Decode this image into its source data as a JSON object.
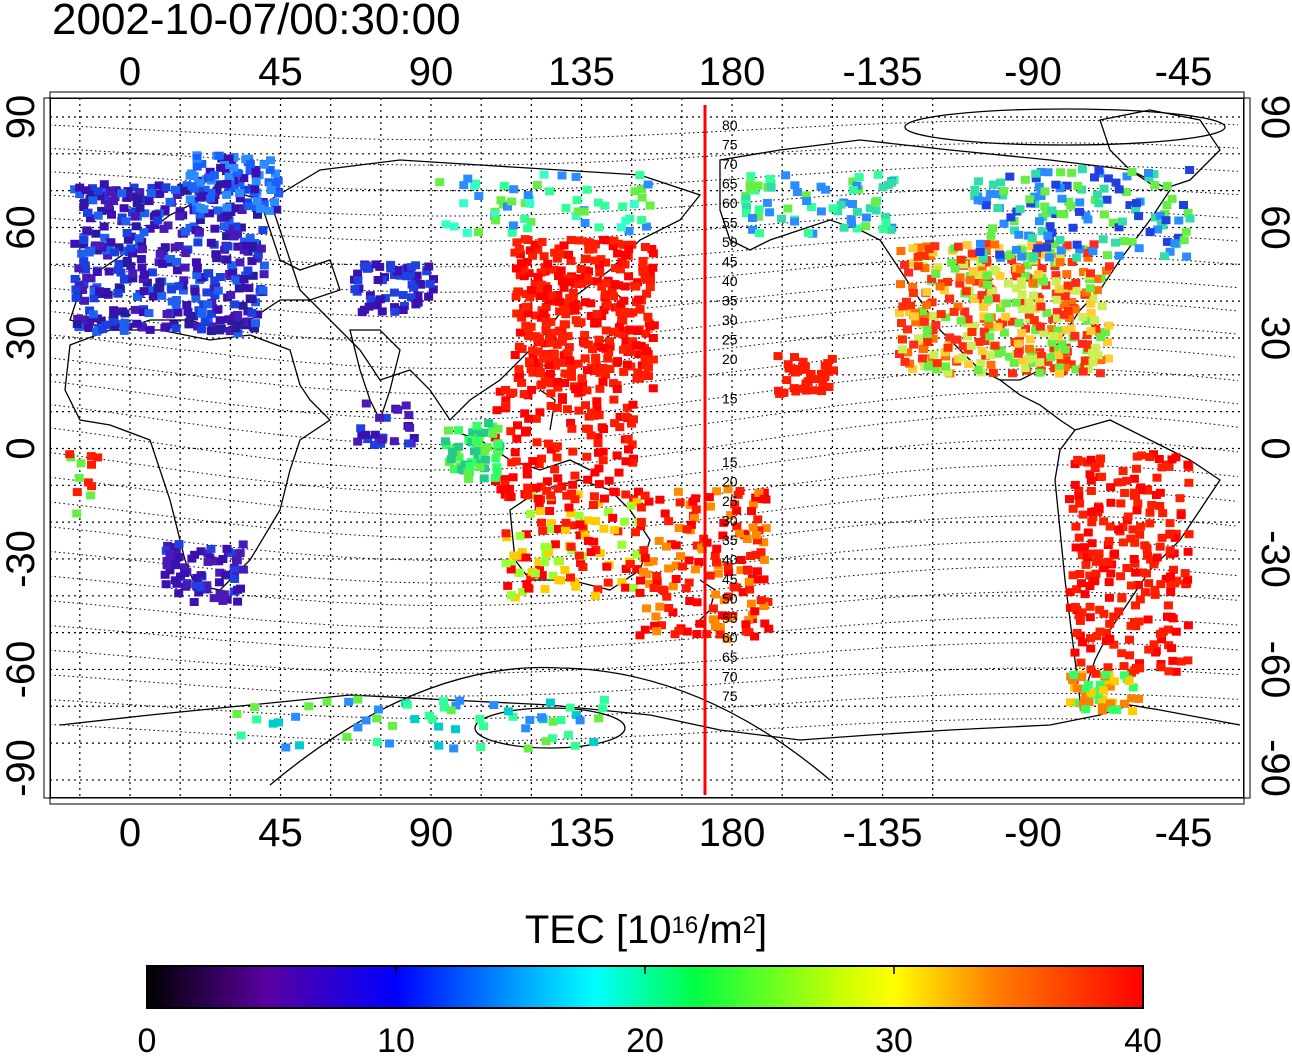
{
  "timestamp": "2002-10-07/00:30:00",
  "map": {
    "lon_ticks": [
      "0",
      "45",
      "90",
      "135",
      "180",
      "-135",
      "-90",
      "-45"
    ],
    "lat_ticks": [
      "90",
      "60",
      "30",
      "0",
      "-30",
      "-60",
      "-90"
    ],
    "magnetic_latitude_labels_north": [
      "80",
      "75",
      "70",
      "65",
      "60",
      "55",
      "50",
      "45",
      "40",
      "35",
      "30",
      "25",
      "20",
      "15"
    ],
    "magnetic_latitude_labels_south": [
      "15",
      "20",
      "25",
      "30",
      "35",
      "40",
      "45",
      "50",
      "55",
      "60",
      "65",
      "70",
      "75"
    ],
    "meridian_line_color": "#ff0000",
    "data_colors": {
      "europe": "#3a10b0",
      "north_america": "#ff2a1a",
      "east_asia": "#ff1a00",
      "australia_nz": "#ff1a00",
      "south_america": "#ff1a00",
      "antarctica": "#33ff99",
      "arctic": "#2a8cff"
    }
  },
  "colorbar": {
    "title_main": "TEC  [10",
    "title_exp": "16",
    "title_unit": "/m",
    "title_unit_exp": "2",
    "title_end": "]",
    "tick_labels": [
      "0",
      "10",
      "20",
      "30",
      "40"
    ],
    "min": 0,
    "max": 40,
    "colors": [
      "#000000",
      "#5a00a0",
      "#0000ff",
      "#00ffff",
      "#00ff00",
      "#ffff00",
      "#ff8000",
      "#ff0000"
    ]
  }
}
